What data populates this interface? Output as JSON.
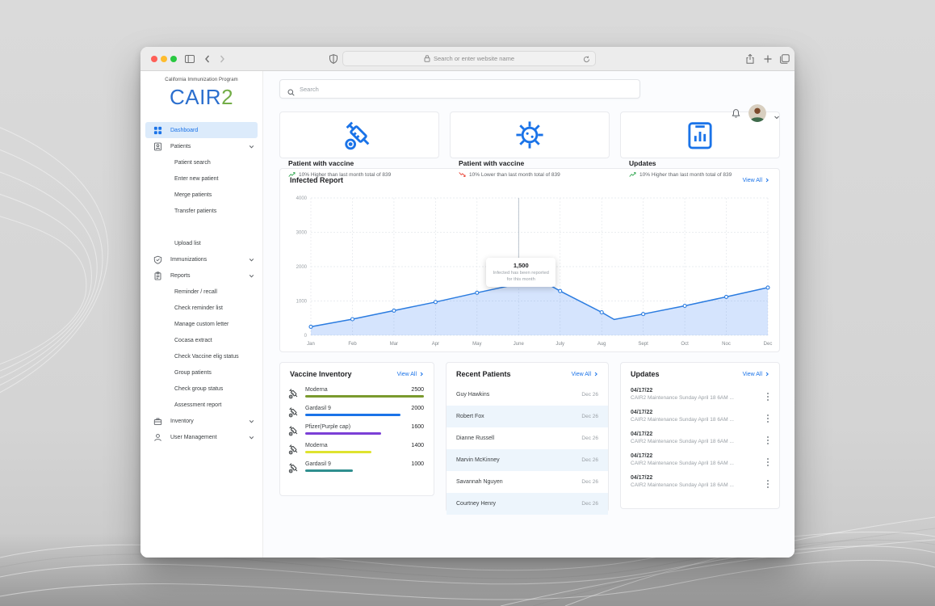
{
  "browser": {
    "url_placeholder": "Search or enter website name"
  },
  "sidebar": {
    "program": "California Immunization Program",
    "logo": {
      "cair": "CAIR",
      "two": "2"
    },
    "items": [
      {
        "label": "Dashboard",
        "icon": "dashboard-grid-icon",
        "type": "parent",
        "active": true
      },
      {
        "label": "Patients",
        "icon": "patients-icon",
        "type": "parent",
        "chevron": true
      },
      {
        "label": "Patient search",
        "type": "child"
      },
      {
        "label": "Enter new patient",
        "type": "child"
      },
      {
        "label": "Merge patients",
        "type": "child"
      },
      {
        "label": "Transfer patients",
        "type": "child"
      },
      {
        "type": "spacer"
      },
      {
        "label": "Upload list",
        "type": "child"
      },
      {
        "label": "Immunizations",
        "icon": "immunizations-icon",
        "type": "parent",
        "chevron": true
      },
      {
        "label": "Reports",
        "icon": "reports-icon",
        "type": "parent",
        "chevron": true
      },
      {
        "label": "Reminder / recall",
        "type": "child"
      },
      {
        "label": "Check reminder list",
        "type": "child"
      },
      {
        "label": "Manage custom letter",
        "type": "child"
      },
      {
        "label": "Cocasa extract",
        "type": "child"
      },
      {
        "label": "Check Vaccine elig status",
        "type": "child"
      },
      {
        "label": "Group patients",
        "type": "child"
      },
      {
        "label": "Check group status",
        "type": "child"
      },
      {
        "label": "Assessment report",
        "type": "child"
      },
      {
        "label": "Inventory",
        "icon": "inventory-icon",
        "type": "parent",
        "chevron": true
      },
      {
        "label": "User Management",
        "icon": "user-management-icon",
        "type": "parent",
        "chevron": true
      }
    ]
  },
  "topbar": {
    "search_placeholder": "Search"
  },
  "stat_cards": [
    {
      "icon": "syringe-icon",
      "title": "Patient with vaccine",
      "trend": "up",
      "subtitle": "10% Higher than last month total of 839"
    },
    {
      "icon": "virus-icon",
      "title": "Patient with vaccine",
      "trend": "down",
      "subtitle": "10% Lower than last month total of 839"
    },
    {
      "icon": "clipboard-chart-icon",
      "title": "Updates",
      "trend": "up",
      "subtitle": "10% Higher than last month total of 839"
    }
  ],
  "infected_report": {
    "title": "Infected Report",
    "view_all": "View All",
    "tooltip": {
      "value": "1,500",
      "line1": "Infected has been reported",
      "line2": "for this month",
      "month_index": 5
    }
  },
  "chart_data": {
    "type": "area",
    "title": "Infected Report",
    "categories": [
      "Jan",
      "Feb",
      "Mar",
      "Apr",
      "May",
      "June",
      "July",
      "Aug",
      "Sept",
      "Oct",
      "Noc",
      "Dec"
    ],
    "values": [
      250,
      470,
      720,
      970,
      1240,
      1500,
      1290,
      670,
      620,
      860,
      1120,
      1390
    ],
    "extra_vertices": [
      {
        "x": 5.65,
        "v": 1530
      },
      {
        "x": 7.3,
        "v": 460
      }
    ],
    "xlabel": "",
    "ylabel": "",
    "ylim": [
      0,
      4000
    ],
    "yticks": [
      0,
      1000,
      2000,
      3000,
      4000
    ],
    "grid": true,
    "legend": false,
    "annotation": {
      "month": "June",
      "value": 1500,
      "text": "1,500 Infected has been reported for this month"
    }
  },
  "vaccine_inventory": {
    "title": "Vaccine Inventory",
    "view_all": "View All",
    "max": 2500,
    "items": [
      {
        "name": "Moderna",
        "value": 2500,
        "color": "#7a9a2e"
      },
      {
        "name": "Gardasil 9",
        "value": 2000,
        "color": "#1a73e8"
      },
      {
        "name": "Pfizer(Purple cap)",
        "value": 1600,
        "color": "#7b3fd6"
      },
      {
        "name": "Moderna",
        "value": 1400,
        "color": "#dfe32f"
      },
      {
        "name": "Gardasil 9",
        "value": 1000,
        "color": "#2f8f8f"
      }
    ]
  },
  "recent_patients": {
    "title": "Recent Patients",
    "view_all": "View All",
    "items": [
      {
        "name": "Guy Hawkins",
        "date": "Dec 26"
      },
      {
        "name": "Robert Fox",
        "date": "Dec 26"
      },
      {
        "name": "Dianne Russell",
        "date": "Dec 26"
      },
      {
        "name": "Marvin McKinney",
        "date": "Dec 26"
      },
      {
        "name": "Savannah Nguyen",
        "date": "Dec 26"
      },
      {
        "name": "Courtney Henry",
        "date": "Dec 26"
      }
    ]
  },
  "updates": {
    "title": "Updates",
    "view_all": "View All",
    "items": [
      {
        "date": "04/17/22",
        "text": "CAIR2 Maintenance Sunday April 18 6AM ..."
      },
      {
        "date": "04/17/22",
        "text": "CAIR2 Maintenance Sunday April 18 6AM ..."
      },
      {
        "date": "04/17/22",
        "text": "CAIR2 Maintenance Sunday April 18 6AM ..."
      },
      {
        "date": "04/17/22",
        "text": "CAIR2 Maintenance Sunday April 18 6AM ..."
      },
      {
        "date": "04/17/22",
        "text": "CAIR2 Maintenance Sunday April 18 6AM ..."
      }
    ]
  },
  "colors": {
    "accent": "#1a73e8",
    "up": "#34a853",
    "down": "#ea4335",
    "line": "#2b7ce0",
    "area_fill": "#cfe1f6",
    "active_item_bg": "#dcebfb"
  }
}
